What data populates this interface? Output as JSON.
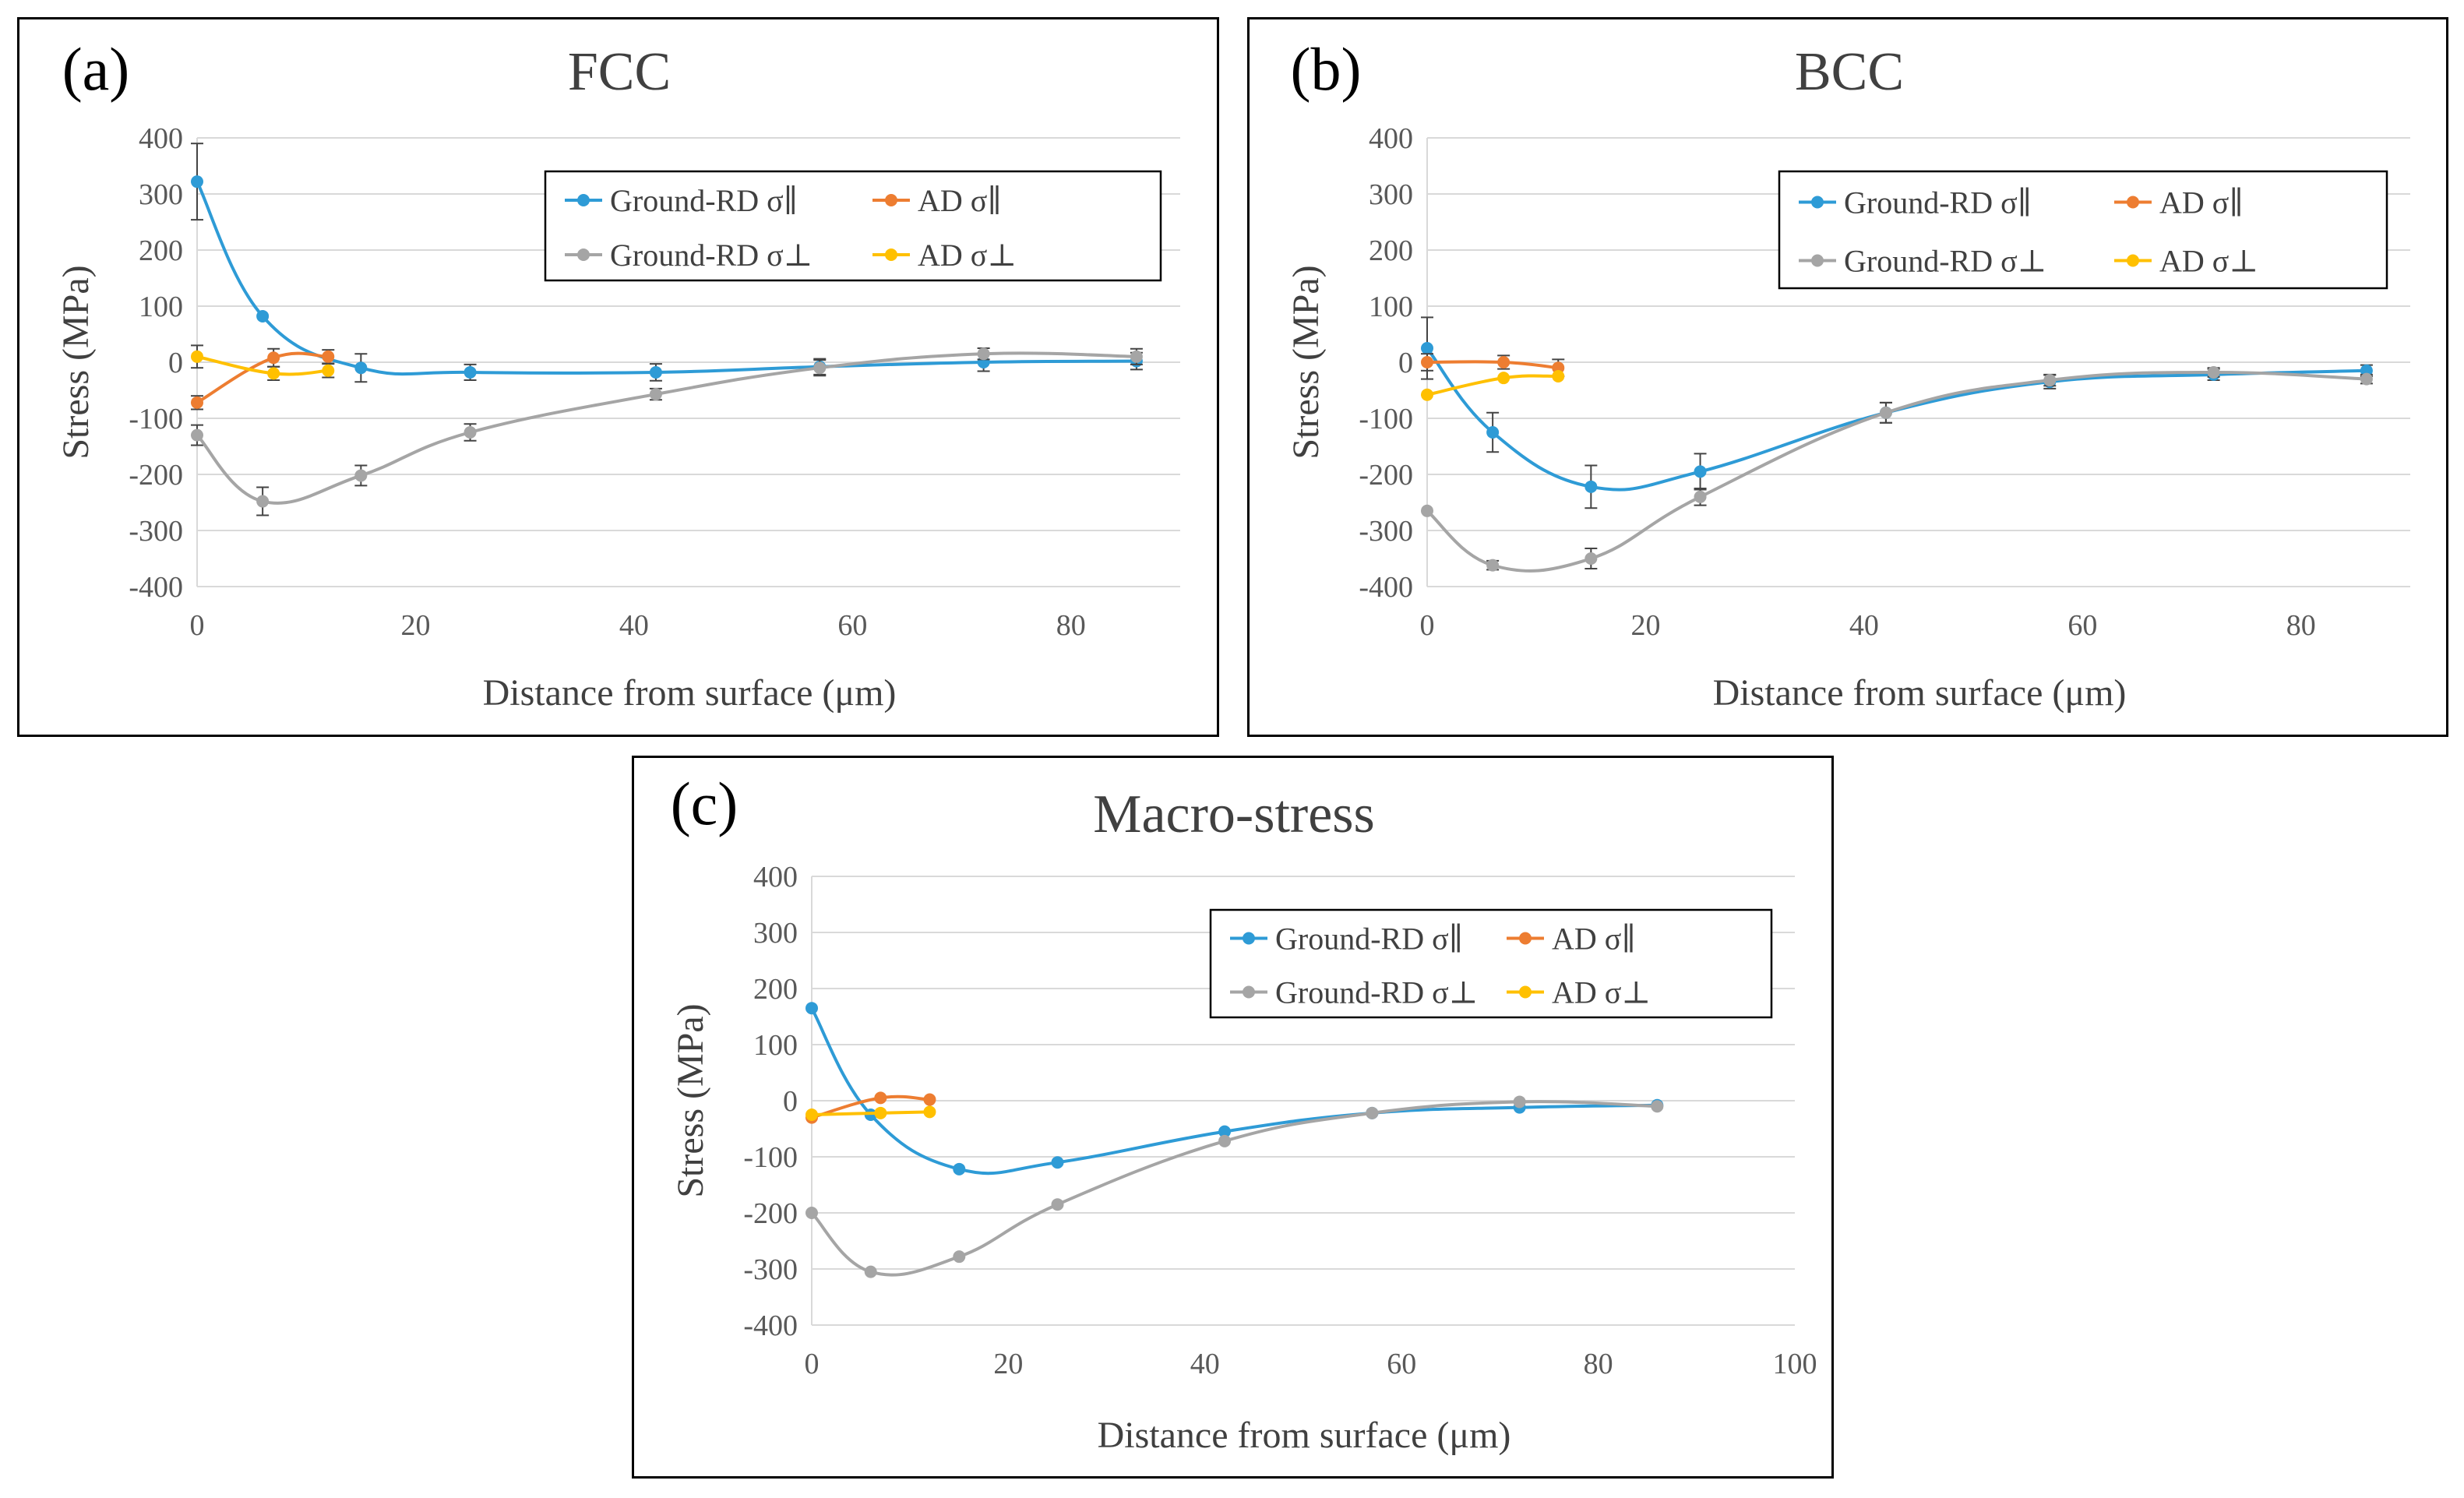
{
  "figure": {
    "charts": [
      {
        "label": "(a)",
        "title": "FCC"
      },
      {
        "label": "(b)",
        "title": "BCC"
      },
      {
        "label": "(c)",
        "title": "Macro-stress"
      }
    ]
  },
  "chart_data": [
    {
      "type": "line",
      "panel_label": "(a)",
      "title": "FCC",
      "xlabel": "Distance from surface (μm)",
      "ylabel": "Stress (MPa)",
      "xlim": [
        0,
        90
      ],
      "ylim": [
        -400,
        400
      ],
      "xticks": [
        "0",
        "20",
        "40",
        "60",
        "80"
      ],
      "yticks": [
        "400",
        "300",
        "200",
        "100",
        "0",
        "-100",
        "-200",
        "-300",
        "-400"
      ],
      "legend": [
        "Ground-RD σ∥",
        "AD σ∥",
        "Ground-RD σ⊥",
        "AD σ⊥"
      ],
      "series": [
        {
          "name": "Ground-RD σ∥",
          "color": "#2e9bd6",
          "x": [
            0,
            6,
            15,
            25,
            42,
            57,
            72,
            86
          ],
          "y": [
            322,
            82,
            -10,
            -18,
            -18,
            -8,
            0,
            2
          ],
          "err": [
            68,
            0,
            25,
            14,
            15,
            14,
            16,
            15
          ]
        },
        {
          "name": "AD σ∥",
          "color": "#ed7d31",
          "x": [
            0,
            7,
            12
          ],
          "y": [
            -72,
            8,
            10
          ],
          "err": [
            12,
            16,
            12
          ]
        },
        {
          "name": "Ground-RD σ⊥",
          "color": "#a5a5a5",
          "x": [
            0,
            6,
            15,
            25,
            42,
            57,
            72,
            86
          ],
          "y": [
            -130,
            -248,
            -202,
            -125,
            -57,
            -10,
            15,
            10
          ],
          "err": [
            18,
            25,
            18,
            15,
            10,
            14,
            10,
            14
          ]
        },
        {
          "name": "AD σ⊥",
          "color": "#ffc000",
          "x": [
            0,
            7,
            12
          ],
          "y": [
            10,
            -20,
            -15
          ],
          "err": [
            20,
            12,
            12
          ]
        }
      ]
    },
    {
      "type": "line",
      "panel_label": "(b)",
      "title": "BCC",
      "xlabel": "Distance from surface (μm)",
      "ylabel": "Stress (MPa)",
      "xlim": [
        0,
        90
      ],
      "ylim": [
        -400,
        400
      ],
      "xticks": [
        "0",
        "20",
        "40",
        "60",
        "80"
      ],
      "yticks": [
        "400",
        "300",
        "200",
        "100",
        "0",
        "-100",
        "-200",
        "-300",
        "-400"
      ],
      "legend": [
        "Ground-RD σ∥",
        "AD σ∥",
        "Ground-RD σ⊥",
        "AD σ⊥"
      ],
      "series": [
        {
          "name": "Ground-RD σ∥",
          "color": "#2e9bd6",
          "x": [
            0,
            6,
            15,
            25,
            42,
            57,
            72,
            86
          ],
          "y": [
            25,
            -125,
            -222,
            -195,
            -90,
            -35,
            -22,
            -15
          ],
          "err": [
            55,
            35,
            38,
            32,
            18,
            12,
            10,
            10
          ]
        },
        {
          "name": "AD σ∥",
          "color": "#ed7d31",
          "x": [
            0,
            7,
            12
          ],
          "y": [
            0,
            0,
            -10
          ],
          "err": [
            15,
            12,
            15
          ]
        },
        {
          "name": "Ground-RD σ⊥",
          "color": "#a5a5a5",
          "x": [
            0,
            6,
            15,
            25,
            42,
            57,
            72,
            86
          ],
          "y": [
            -265,
            -362,
            -350,
            -240,
            -90,
            -32,
            -18,
            -30
          ],
          "err": [
            0,
            8,
            18,
            15,
            18,
            10,
            8,
            8
          ]
        },
        {
          "name": "AD σ⊥",
          "color": "#ffc000",
          "x": [
            0,
            7,
            12
          ],
          "y": [
            -58,
            -28,
            -25
          ],
          "err": [
            0,
            0,
            0
          ]
        }
      ]
    },
    {
      "type": "line",
      "panel_label": "(c)",
      "title": "Macro-stress",
      "xlabel": "Distance from surface (μm)",
      "ylabel": "Stress (MPa)",
      "xlim": [
        0,
        100
      ],
      "ylim": [
        -400,
        400
      ],
      "xticks": [
        "0",
        "20",
        "40",
        "60",
        "80",
        "100"
      ],
      "yticks": [
        "400",
        "300",
        "200",
        "100",
        "0",
        "-100",
        "-200",
        "-300",
        "-400"
      ],
      "legend": [
        "Ground-RD σ∥",
        "AD σ∥",
        "Ground-RD σ⊥",
        "AD σ⊥"
      ],
      "series": [
        {
          "name": "Ground-RD σ∥",
          "color": "#2e9bd6",
          "x": [
            0,
            6,
            15,
            25,
            42,
            57,
            72,
            86
          ],
          "y": [
            165,
            -25,
            -122,
            -110,
            -55,
            -22,
            -12,
            -8
          ],
          "err": [
            0,
            0,
            0,
            0,
            0,
            0,
            0,
            0
          ]
        },
        {
          "name": "AD σ∥",
          "color": "#ed7d31",
          "x": [
            0,
            7,
            12
          ],
          "y": [
            -30,
            5,
            2
          ],
          "err": [
            0,
            0,
            0
          ]
        },
        {
          "name": "Ground-RD σ⊥",
          "color": "#a5a5a5",
          "x": [
            0,
            6,
            15,
            25,
            42,
            57,
            72,
            86
          ],
          "y": [
            -200,
            -305,
            -278,
            -185,
            -72,
            -22,
            -2,
            -10
          ],
          "err": [
            0,
            0,
            0,
            0,
            0,
            0,
            0,
            0
          ]
        },
        {
          "name": "AD σ⊥",
          "color": "#ffc000",
          "x": [
            0,
            7,
            12
          ],
          "y": [
            -25,
            -22,
            -20
          ],
          "err": [
            0,
            0,
            0
          ]
        }
      ]
    }
  ]
}
